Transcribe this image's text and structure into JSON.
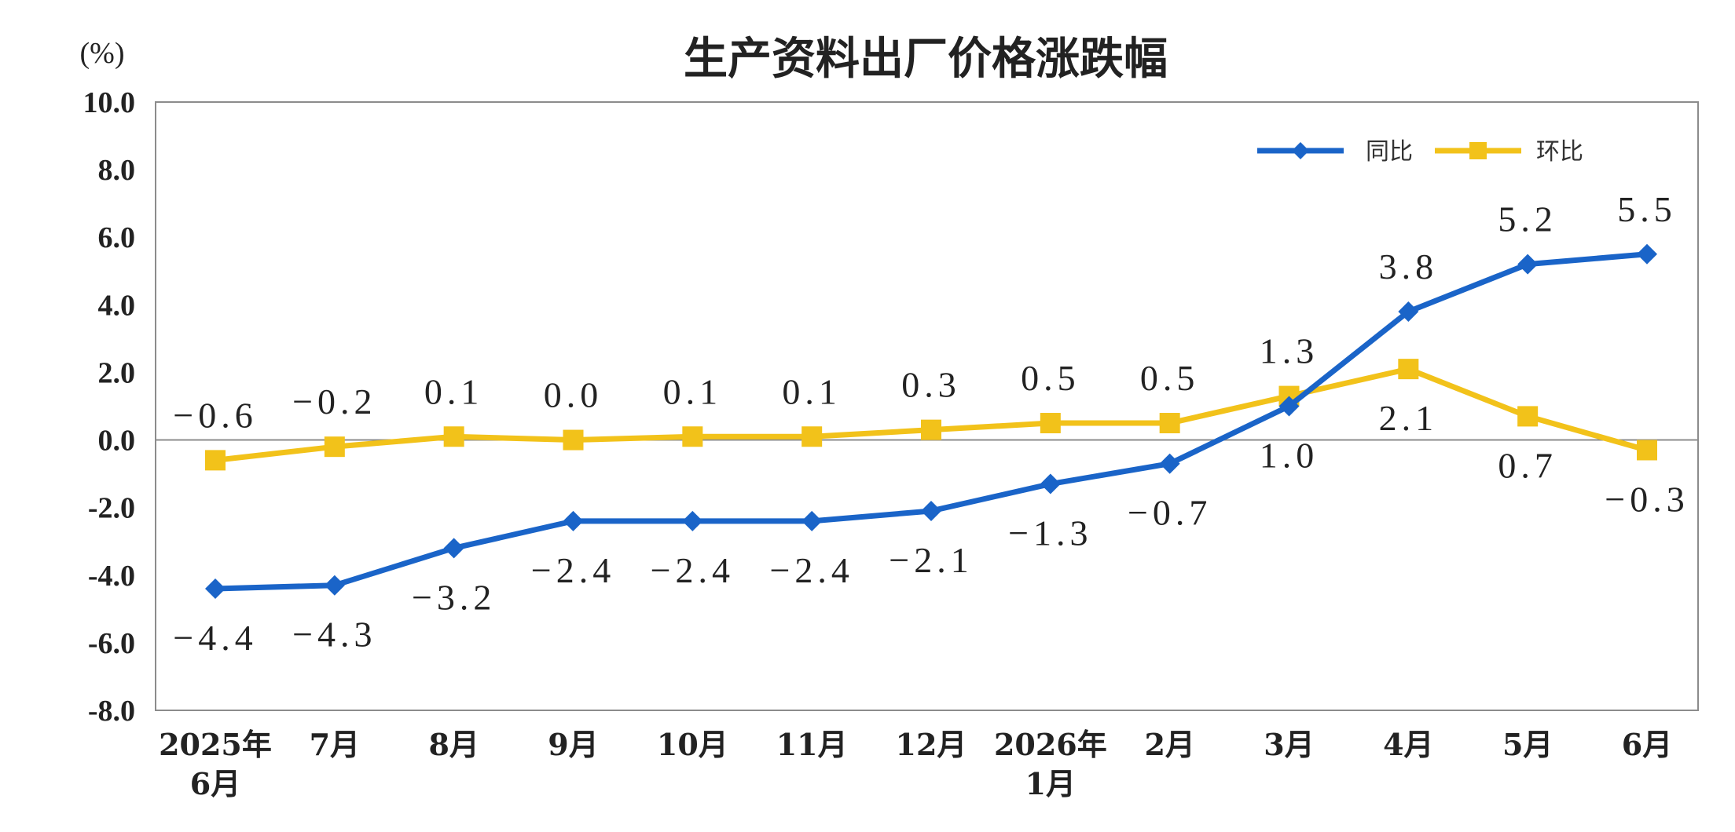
{
  "chart_data": {
    "type": "line",
    "title": "生产资料出厂价格涨跌幅",
    "unit_label": "(%)",
    "ylim": [
      -8.0,
      10.0
    ],
    "y_ticks": [
      "10.0",
      "8.0",
      "6.0",
      "4.0",
      "2.0",
      "0.0",
      "-2.0",
      "-4.0",
      "-6.0",
      "-8.0"
    ],
    "y_tick_values": [
      10,
      8,
      6,
      4,
      2,
      0,
      -2,
      -4,
      -6,
      -8
    ],
    "categories": [
      [
        "2025年",
        "6月"
      ],
      [
        "7月"
      ],
      [
        "8月"
      ],
      [
        "9月"
      ],
      [
        "10月"
      ],
      [
        "11月"
      ],
      [
        "12月"
      ],
      [
        "2026年",
        "1月"
      ],
      [
        "2月"
      ],
      [
        "3月"
      ],
      [
        "4月"
      ],
      [
        "5月"
      ],
      [
        "6月"
      ]
    ],
    "grid": false,
    "legend_position": "top-right",
    "series": [
      {
        "name": "同比",
        "color": "#1a64c8",
        "marker": "diamond",
        "values": [
          -4.4,
          -4.3,
          -3.2,
          -2.4,
          -2.4,
          -2.4,
          -2.1,
          -1.3,
          -0.7,
          1.0,
          3.8,
          5.2,
          5.5
        ],
        "labels": [
          "-4.4",
          "-4.3",
          "-3.2",
          "-2.4",
          "-2.4",
          "-2.4",
          "-2.1",
          "-1.3",
          "-0.7",
          "1.0",
          "3.8",
          "5.2",
          "5.5"
        ]
      },
      {
        "name": "环比",
        "color": "#f2c21a",
        "marker": "square",
        "values": [
          -0.6,
          -0.2,
          0.1,
          0.0,
          0.1,
          0.1,
          0.3,
          0.5,
          0.5,
          1.3,
          2.1,
          0.7,
          -0.3
        ],
        "labels": [
          "-0.6",
          "-0.2",
          "0.1",
          "0.0",
          "0.1",
          "0.1",
          "0.3",
          "0.5",
          "0.5",
          "1.3",
          "2.1",
          "0.7",
          "-0.3"
        ]
      }
    ]
  }
}
